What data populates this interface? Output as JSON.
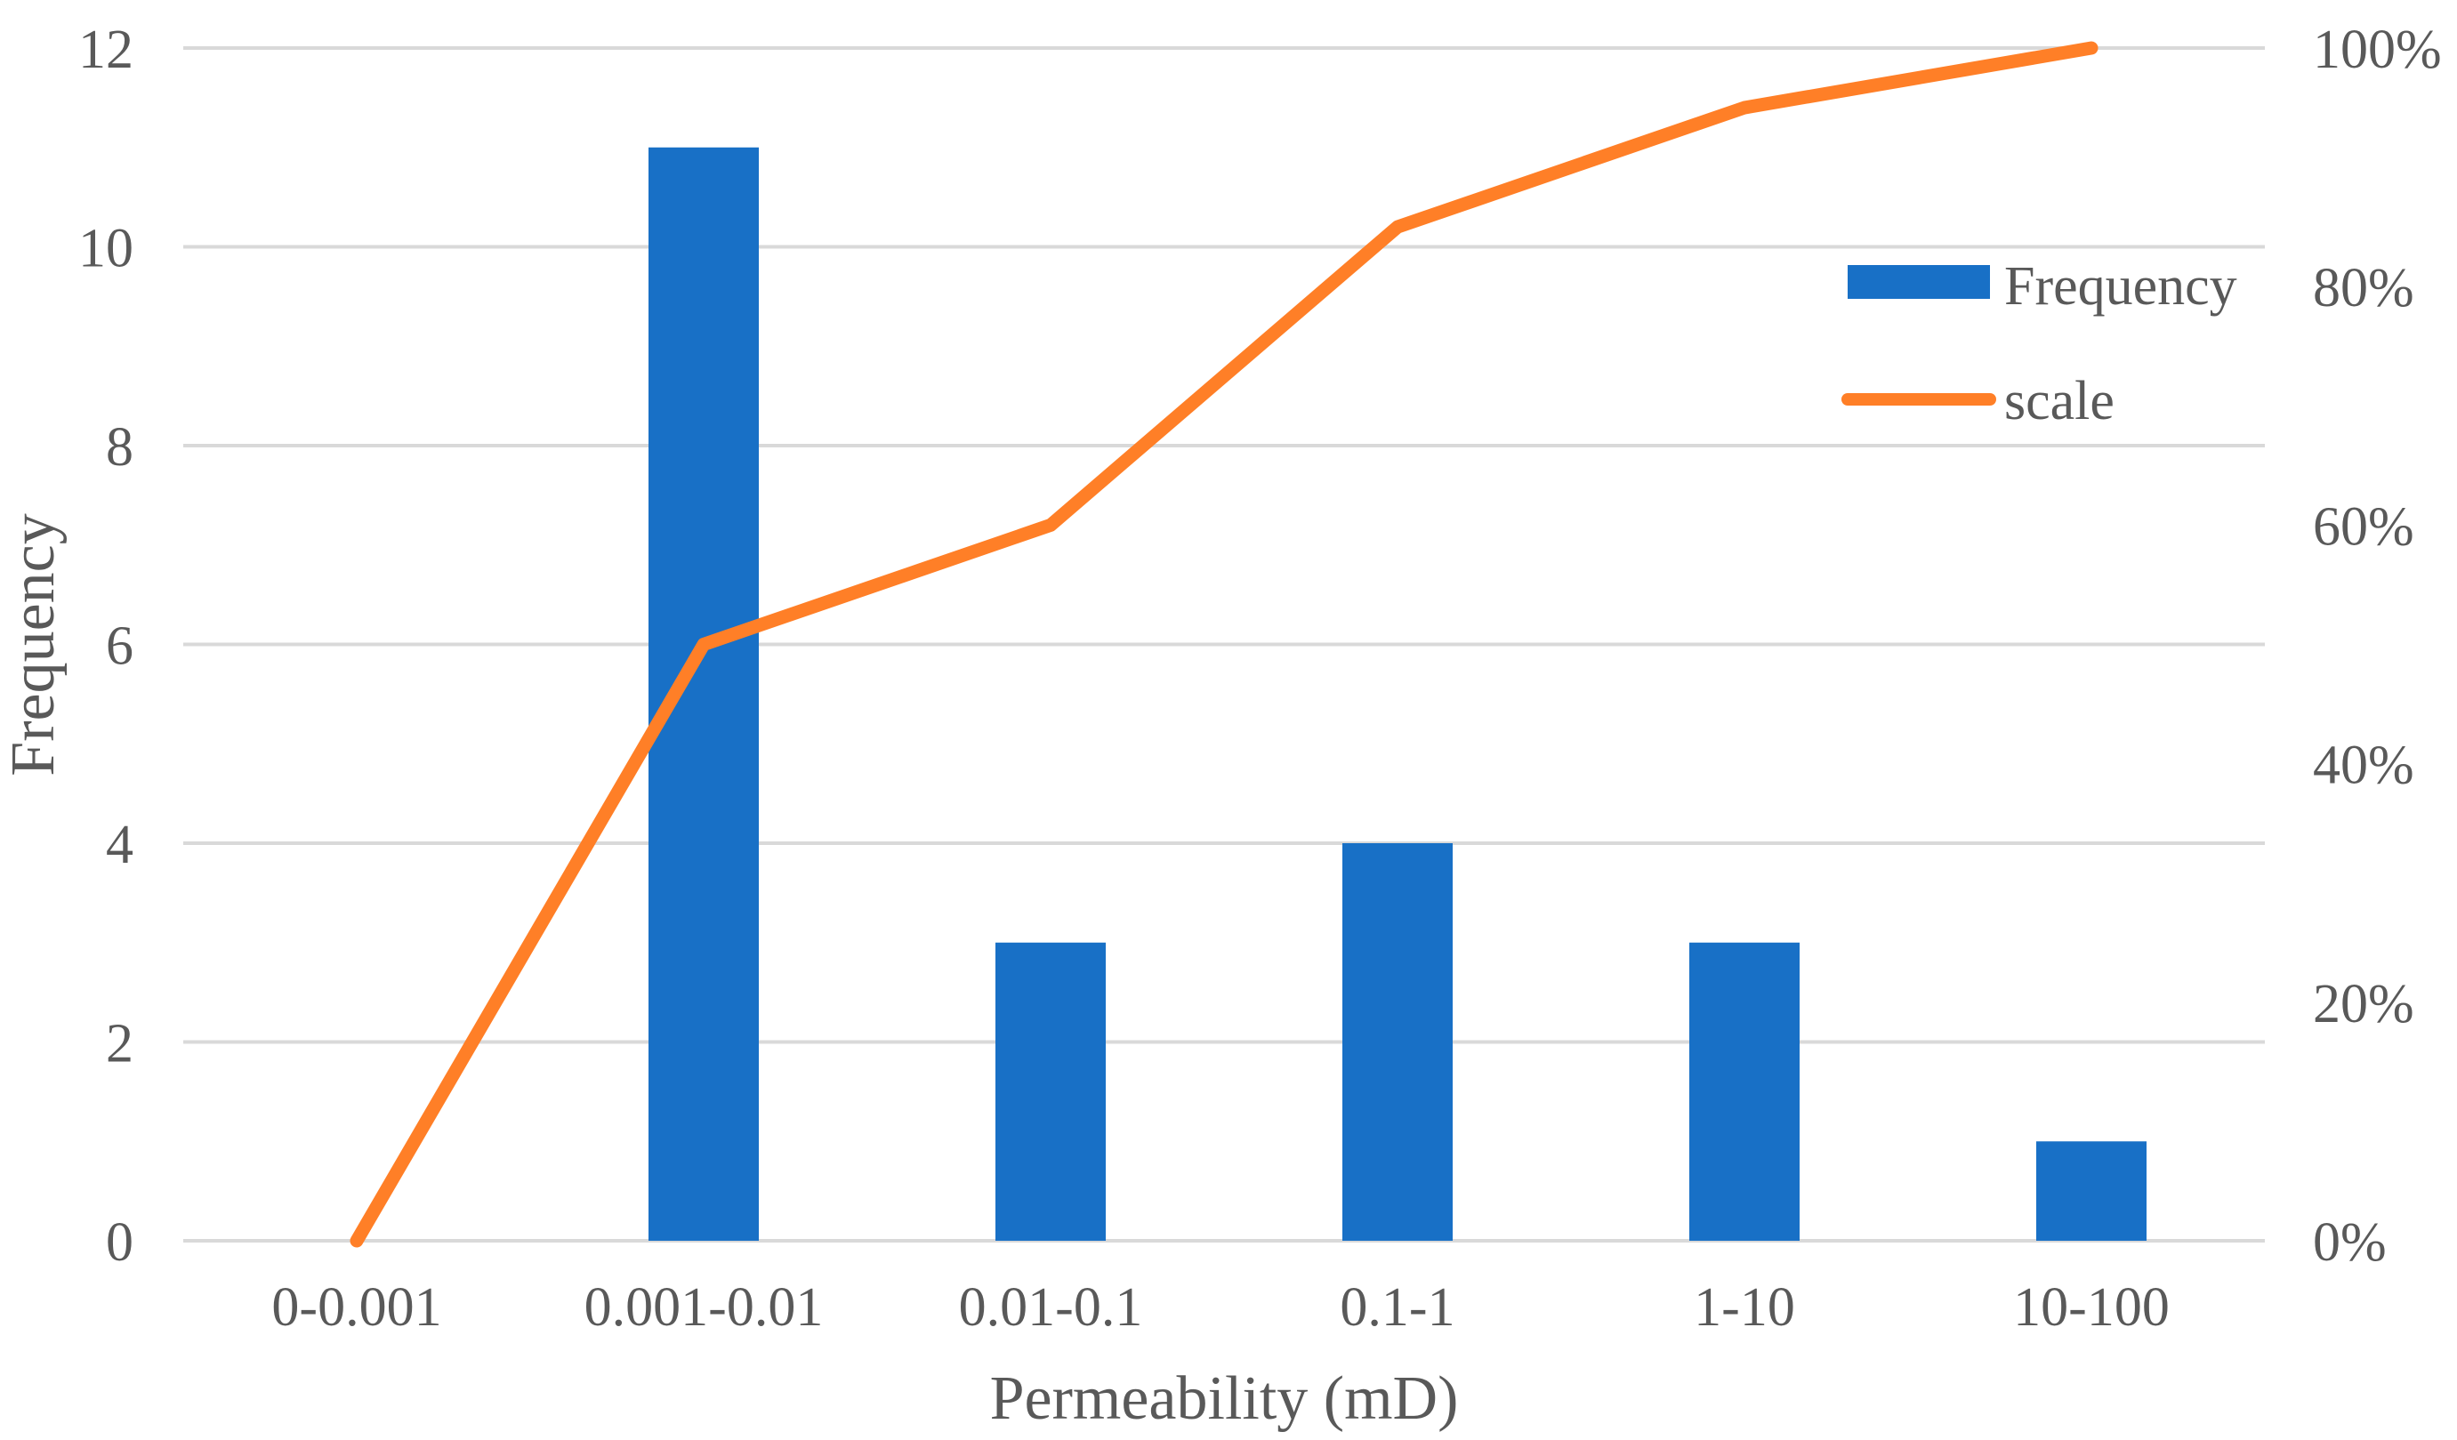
{
  "chart_data": {
    "type": "bar",
    "categories": [
      "0-0.001",
      "0.001-0.01",
      "0.01-0.1",
      "0.1-1",
      "1-10",
      "10-100"
    ],
    "series": [
      {
        "name": "Frequency",
        "type": "bar",
        "axis": "left",
        "values": [
          0,
          11,
          3,
          4,
          3,
          1
        ],
        "color": "#1870C6"
      },
      {
        "name": "scale",
        "type": "line",
        "axis": "right",
        "values": [
          0,
          50,
          60,
          85,
          95,
          100
        ],
        "color": "#FF7F27"
      }
    ],
    "xlabel": "Permeability (mD)",
    "ylabel": "Frequency",
    "ylim": [
      0,
      12
    ],
    "y2lim": [
      0,
      100
    ],
    "yticks": [
      "0",
      "2",
      "4",
      "6",
      "8",
      "10",
      "12"
    ],
    "y2ticks": [
      "0%",
      "20%",
      "40%",
      "60%",
      "80%",
      "100%"
    ],
    "grid": true,
    "legend_position": "right",
    "gridline_color": "#D9D9D9"
  }
}
